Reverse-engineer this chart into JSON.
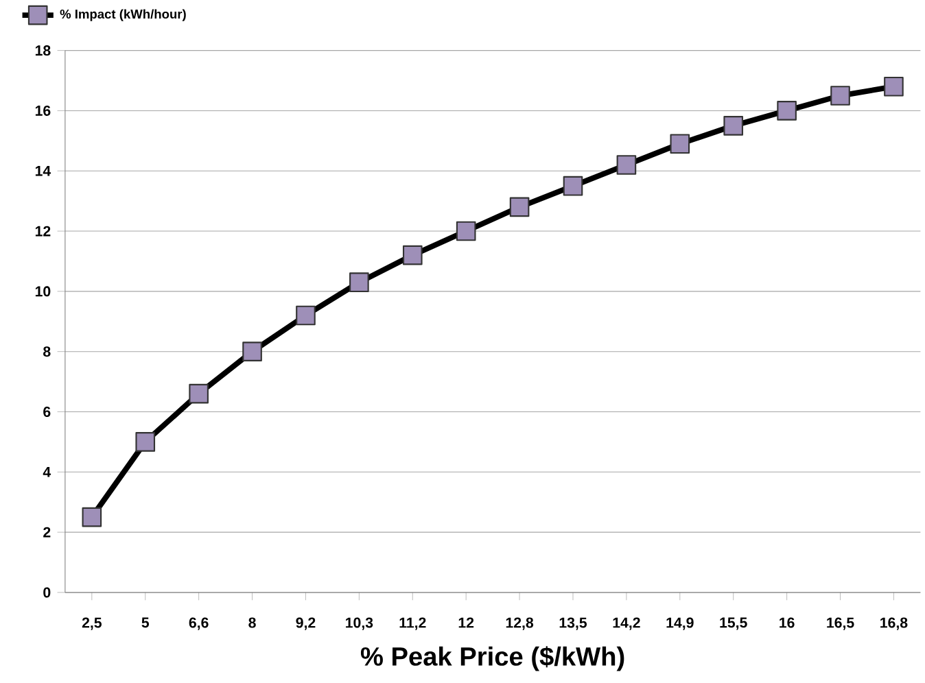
{
  "chart_data": {
    "type": "line",
    "xlabel": "% Peak Price ($/kWh)",
    "categories": [
      "2,5",
      "5",
      "6,6",
      "8",
      "9,2",
      "10,3",
      "11,2",
      "12",
      "12,8",
      "13,5",
      "14,2",
      "14,9",
      "15,5",
      "16",
      "16,5",
      "16,8"
    ],
    "series": [
      {
        "name": "% Impact (kWh/hour)",
        "color": "#000000",
        "values": [
          2.5,
          5,
          6.6,
          8,
          9.2,
          10.3,
          11.2,
          12,
          12.8,
          13.5,
          14.2,
          14.9,
          15.5,
          16,
          16.5,
          16.8
        ]
      }
    ],
    "ylim": [
      0,
      18
    ],
    "yticks": [
      0,
      2,
      4,
      6,
      8,
      10,
      12,
      14,
      16,
      18
    ],
    "grid": "y",
    "legend": "top left",
    "marker": "square",
    "line_style": "solid"
  }
}
